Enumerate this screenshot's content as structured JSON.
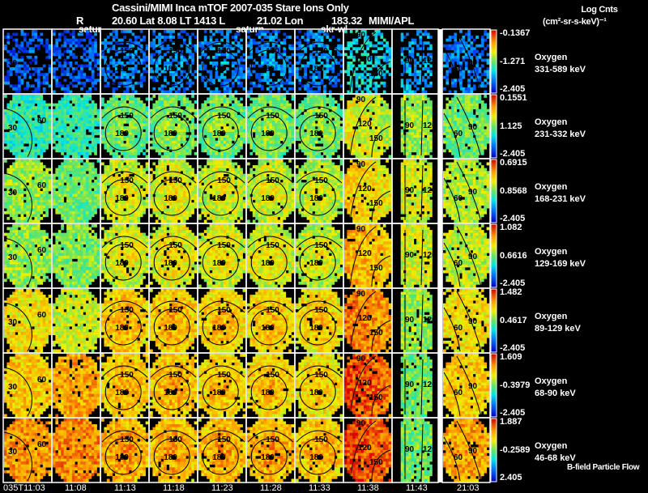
{
  "header": {
    "title": "Cassini/MIMI Inca mTOF  2007-035   Stare   Ions Only",
    "r_label": "R",
    "pos_text": "20.60 Lat 8.08 LT 1413 L",
    "lon_text": "21.02 Lon",
    "lon_value": "183.32",
    "source": "MIMI/APL",
    "overlays": [
      "satur",
      "saturn",
      "skr-wl"
    ]
  },
  "colorbar": {
    "title": "Log Cnts",
    "unit": "(cm²-sr-s-keV)⁻¹"
  },
  "footer": {
    "bfield": "B-field Particle Flow"
  },
  "chart_data": {
    "type": "heatmap",
    "title": "Cassini/MIMI Inca mTOF  2007-035   Stare   Ions Only",
    "columns": [
      "035T11:03",
      "11:08",
      "11:13",
      "11:18",
      "11:23",
      "11:28",
      "11:33",
      "11:38",
      "11:43",
      "21:03"
    ],
    "rows": [
      {
        "species": "Oxygen",
        "energy": "331-589 keV",
        "cmax": "-0.1367",
        "cmid": "-1.271",
        "cmin": "-2.405"
      },
      {
        "species": "Oxygen",
        "energy": "231-332 keV",
        "cmax": "0.1551",
        "cmid": "1.125",
        "cmin": "-2.405"
      },
      {
        "species": "Oxygen",
        "energy": "168-231 keV",
        "cmax": "0.6915",
        "cmid": "0.8568",
        "cmin": "-2.405"
      },
      {
        "species": "Oxygen",
        "energy": "129-169 keV",
        "cmax": "1.082",
        "cmid": "0.6616",
        "cmin": "-2.405"
      },
      {
        "species": "Oxygen",
        "energy": "89-129 keV",
        "cmax": "1.482",
        "cmid": "0.4617",
        "cmin": "-2.405"
      },
      {
        "species": "Oxygen",
        "energy": "68-90 keV",
        "cmax": "1.609",
        "cmid": "-0.3979",
        "cmin": "-2.405"
      },
      {
        "species": "Oxygen",
        "energy": "46-68 keV",
        "cmax": "1.887",
        "cmid": "-0.2589",
        "cmin": "2.405"
      }
    ],
    "panel_levels": [
      [
        0.15,
        0.15,
        0.18,
        0.2,
        0.2,
        0.2,
        0.2,
        0.3,
        0.25,
        0.2
      ],
      [
        0.42,
        0.42,
        0.48,
        0.5,
        0.5,
        0.5,
        0.5,
        0.58,
        0.55,
        0.5
      ],
      [
        0.55,
        0.5,
        0.6,
        0.62,
        0.6,
        0.6,
        0.58,
        0.65,
        0.62,
        0.58
      ],
      [
        0.55,
        0.52,
        0.62,
        0.64,
        0.62,
        0.62,
        0.6,
        0.7,
        0.62,
        0.6
      ],
      [
        0.68,
        0.62,
        0.72,
        0.72,
        0.7,
        0.7,
        0.68,
        0.78,
        0.55,
        0.68
      ],
      [
        0.72,
        0.78,
        0.72,
        0.72,
        0.7,
        0.7,
        0.68,
        0.85,
        0.5,
        0.72
      ],
      [
        0.8,
        0.82,
        0.75,
        0.74,
        0.74,
        0.75,
        0.72,
        0.85,
        0.5,
        0.78
      ]
    ],
    "contour_labels": {
      "edge": [
        "30",
        "60"
      ],
      "center": [
        "150",
        "180"
      ],
      "late": [
        "90",
        "120",
        "150"
      ],
      "lines": [
        "90",
        "120"
      ],
      "last": [
        "60",
        "90"
      ]
    },
    "colormap": "rainbow",
    "color_range": [
      0,
      1
    ]
  }
}
